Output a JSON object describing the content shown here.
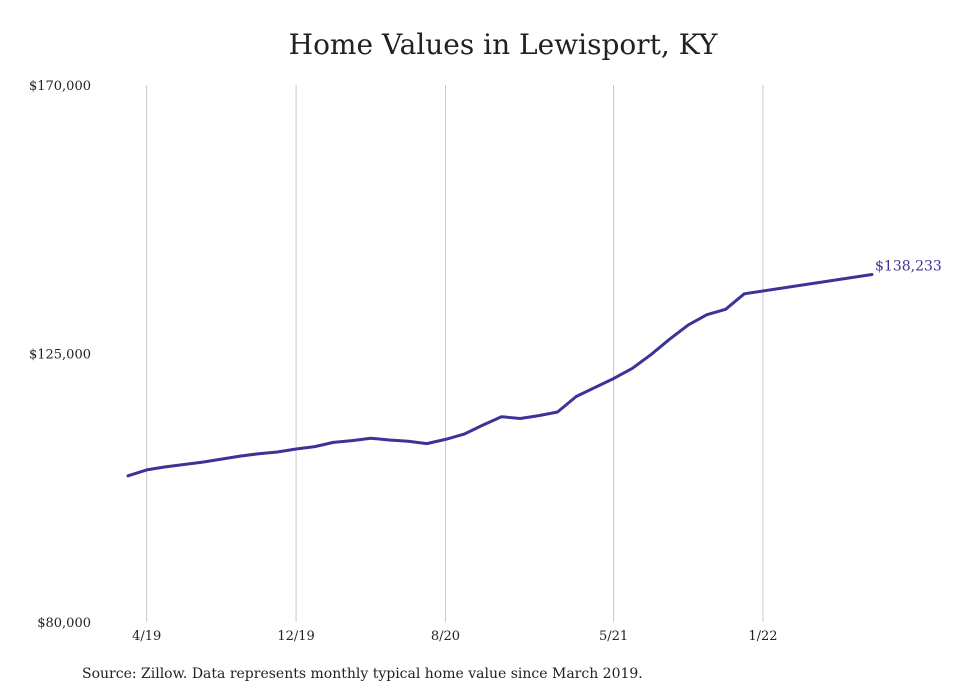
{
  "chart_data": {
    "type": "line",
    "title": "Home Values in Lewisport, KY",
    "source_note": "Source: Zillow. Data represents monthly typical home value since March 2019.",
    "xlabel": "",
    "ylabel": "",
    "x_tick_labels": [
      "4/19",
      "12/19",
      "8/20",
      "5/21",
      "1/22"
    ],
    "x_tick_months": [
      "2019-04",
      "2019-12",
      "2020-08",
      "2021-05",
      "2022-01"
    ],
    "y_tick_labels": [
      "$80,000",
      "$125,000",
      "$170,000"
    ],
    "y_ticks": [
      80000,
      125000,
      170000
    ],
    "ylim": [
      80000,
      170000
    ],
    "xlim": [
      "2019-03",
      "2022-07"
    ],
    "grid": {
      "vertical": true,
      "horizontal": false
    },
    "colors": {
      "line": "#3b3398",
      "grid": "#c8c8c8",
      "text": "#222222"
    },
    "end_label": "$138,233",
    "series": [
      {
        "x": [
          "2019-03",
          "2019-04",
          "2019-05",
          "2019-06",
          "2019-07",
          "2019-08",
          "2019-09",
          "2019-10",
          "2019-11",
          "2019-12",
          "2020-01",
          "2020-02",
          "2020-03",
          "2020-04",
          "2020-05",
          "2020-06",
          "2020-07",
          "2020-08",
          "2020-09",
          "2020-10",
          "2020-11",
          "2020-12",
          "2021-01",
          "2021-02",
          "2021-03",
          "2021-04",
          "2021-05",
          "2021-06",
          "2021-07",
          "2021-08",
          "2021-09",
          "2021-10",
          "2021-11",
          "2021-12",
          "2022-01",
          "2022-02"
        ],
        "values": [
          104500,
          105500,
          106000,
          106400,
          106800,
          107300,
          107800,
          108200,
          108500,
          109000,
          109400,
          110100,
          110400,
          110800,
          110500,
          110300,
          109900,
          110600,
          111500,
          113000,
          114400,
          114100,
          114600,
          115200,
          117800,
          119300,
          120800,
          122500,
          124800,
          127400,
          129800,
          131500,
          132400,
          135000,
          138233,
          138233
        ]
      }
    ]
  }
}
